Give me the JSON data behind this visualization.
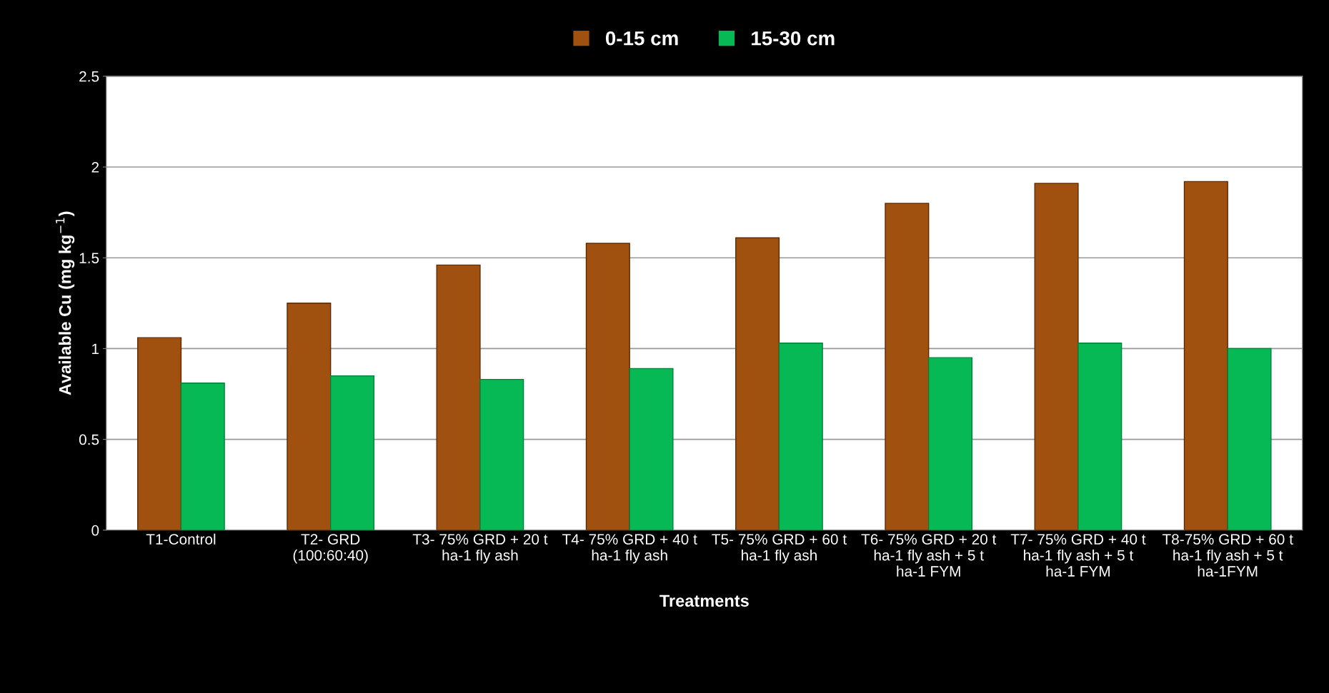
{
  "chart_data": {
    "type": "bar",
    "xlabel": "Treatments",
    "ylabel": "Available Cu (mg kg$^{−1}$)",
    "categories": [
      "T1-Control",
      "T2- GRD\n(100:60:40)",
      "T3- 75% GRD + 20 t\nha-1 fly ash",
      "T4- 75% GRD + 40 t\nha-1 fly ash",
      "T5- 75% GRD + 60 t\nha-1 fly ash",
      "T6- 75% GRD + 20 t\nha-1 fly ash + 5 t\nha-1 FYM",
      "T7- 75% GRD + 40 t\nha-1 fly ash + 5 t\nha-1 FYM",
      "T8-75% GRD + 60 t\nha-1 fly ash + 5 t\nha-1FYM"
    ],
    "series": [
      {
        "name": "0-15 cm",
        "color": "#a0500f",
        "values": [
          1.06,
          1.25,
          1.46,
          1.58,
          1.61,
          1.8,
          1.91,
          1.92
        ]
      },
      {
        "name": "15-30 cm",
        "color": "#07b955",
        "values": [
          0.81,
          0.85,
          0.83,
          0.89,
          1.03,
          0.95,
          1.03,
          1.0
        ]
      }
    ],
    "ylim": [
      0,
      2.5
    ],
    "yticks": [
      0,
      0.5,
      1,
      1.5,
      2,
      2.5
    ],
    "grid": "y",
    "legend": "top"
  }
}
